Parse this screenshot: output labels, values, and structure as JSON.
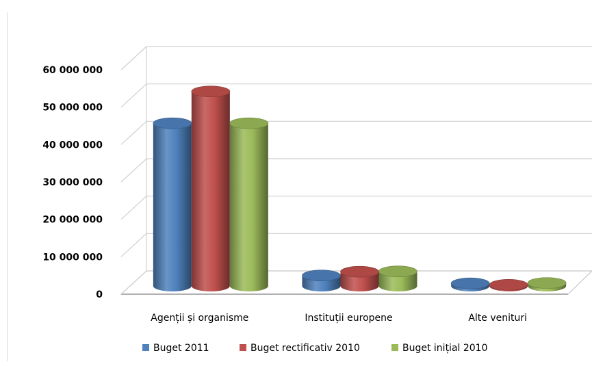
{
  "chart_data": {
    "type": "bar",
    "style": "3d-cylinder",
    "categories": [
      "Agenții și organisme",
      "Instituții europene",
      "Alte venituri"
    ],
    "series": [
      {
        "name": "Buget 2011",
        "color": "#4f81bd",
        "values": [
          43500000,
          2800000,
          700000
        ]
      },
      {
        "name": "Buget rectificativ 2010",
        "color": "#c0504d",
        "values": [
          52000000,
          3800000,
          300000
        ]
      },
      {
        "name": "Buget inițial 2010",
        "color": "#9bbb59",
        "values": [
          43500000,
          3900000,
          800000
        ]
      }
    ],
    "yticks": [
      0,
      10000000,
      20000000,
      30000000,
      40000000,
      50000000,
      60000000
    ],
    "ytick_labels": [
      "0",
      "10 000 000",
      "20 000 000",
      "30 000 000",
      "40 000 000",
      "50 000 000",
      "60 000 000"
    ],
    "ylim": [
      0,
      60000000
    ],
    "grid": true,
    "legend_position": "bottom",
    "title": "",
    "xlabel": "",
    "ylabel": ""
  }
}
